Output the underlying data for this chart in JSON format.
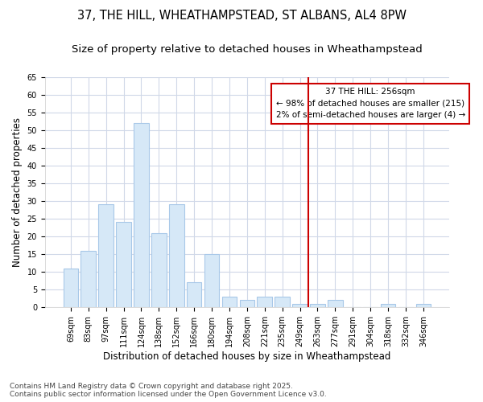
{
  "title_line1": "37, THE HILL, WHEATHAMPSTEAD, ST ALBANS, AL4 8PW",
  "title_line2": "Size of property relative to detached houses in Wheathampstead",
  "xlabel": "Distribution of detached houses by size in Wheathampstead",
  "ylabel": "Number of detached properties",
  "categories": [
    "69sqm",
    "83sqm",
    "97sqm",
    "111sqm",
    "124sqm",
    "138sqm",
    "152sqm",
    "166sqm",
    "180sqm",
    "194sqm",
    "208sqm",
    "221sqm",
    "235sqm",
    "249sqm",
    "263sqm",
    "277sqm",
    "291sqm",
    "304sqm",
    "318sqm",
    "332sqm",
    "346sqm"
  ],
  "values": [
    11,
    16,
    29,
    24,
    52,
    21,
    29,
    7,
    15,
    3,
    2,
    3,
    3,
    1,
    1,
    2,
    0,
    0,
    1,
    0,
    1
  ],
  "bar_color": "#d6e8f7",
  "bar_edge_color": "#a8c8e8",
  "ylim": [
    0,
    65
  ],
  "yticks": [
    0,
    5,
    10,
    15,
    20,
    25,
    30,
    35,
    40,
    45,
    50,
    55,
    60,
    65
  ],
  "vline_x_index": 13.5,
  "vline_color": "#cc0000",
  "annotation_text_line1": "37 THE HILL: 256sqm",
  "annotation_text_line2": "← 98% of detached houses are smaller (215)",
  "annotation_text_line3": "2% of semi-detached houses are larger (4) →",
  "annotation_box_color": "#cc0000",
  "footer_line1": "Contains HM Land Registry data © Crown copyright and database right 2025.",
  "footer_line2": "Contains public sector information licensed under the Open Government Licence v3.0.",
  "background_color": "#ffffff",
  "plot_background": "#ffffff",
  "grid_color": "#d0d8e8",
  "title_fontsize": 10.5,
  "subtitle_fontsize": 9.5,
  "tick_fontsize": 7,
  "label_fontsize": 8.5,
  "footer_fontsize": 6.5
}
